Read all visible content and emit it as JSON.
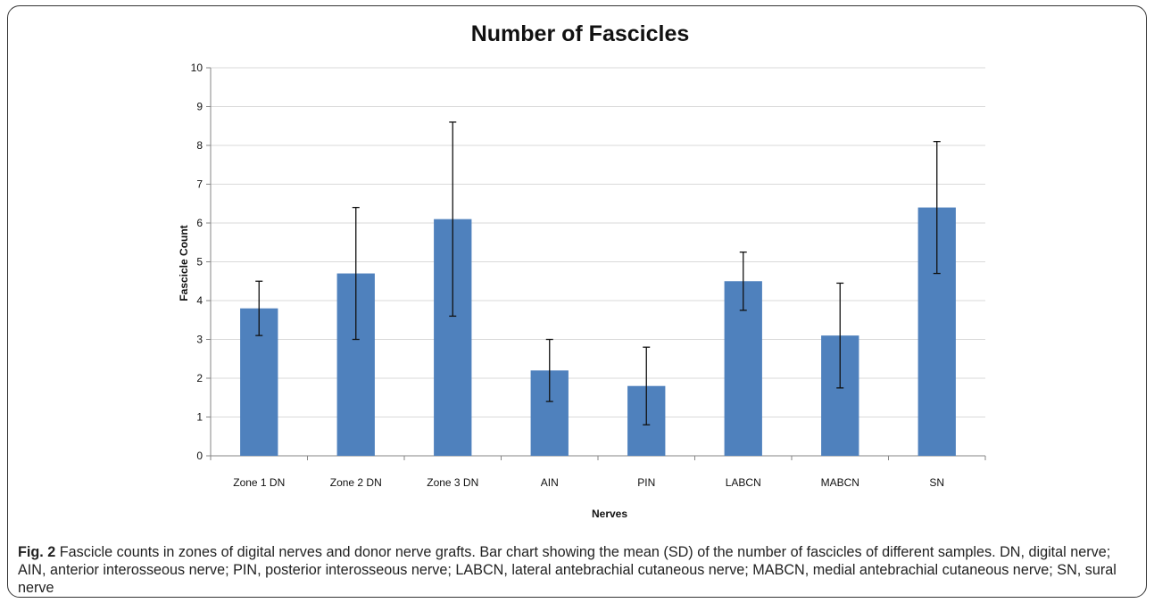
{
  "chart_data": {
    "type": "bar",
    "title": "Number of Fascicles",
    "xlabel": "Nerves",
    "ylabel": "Fascicle Count",
    "ylim": [
      0,
      10
    ],
    "yticks": [
      "0",
      "1",
      "2",
      "3",
      "4",
      "5",
      "6",
      "7",
      "8",
      "9",
      "10"
    ],
    "categories": [
      "Zone 1 DN",
      "Zone 2 DN",
      "Zone 3 DN",
      "AIN",
      "PIN",
      "LABCN",
      "MABCN",
      "SN"
    ],
    "values": [
      3.8,
      4.7,
      6.1,
      2.2,
      1.8,
      4.5,
      3.1,
      6.4
    ],
    "error_bars": [
      0.7,
      1.7,
      2.5,
      0.8,
      1.0,
      0.75,
      1.35,
      1.7
    ],
    "bar_color": "#4f81bd",
    "grid": true,
    "legend": "none"
  },
  "caption": {
    "label": "Fig. 2",
    "text": "Fascicle counts in zones of digital nerves and donor nerve grafts. Bar chart showing the mean (SD) of the number of fascicles of different samples. DN, digital nerve; AIN, anterior interosseous nerve; PIN, posterior interosseous nerve; LABCN, lateral antebrachial cutaneous nerve; MABCN, medial antebrachial cutaneous nerve; SN, sural nerve"
  }
}
